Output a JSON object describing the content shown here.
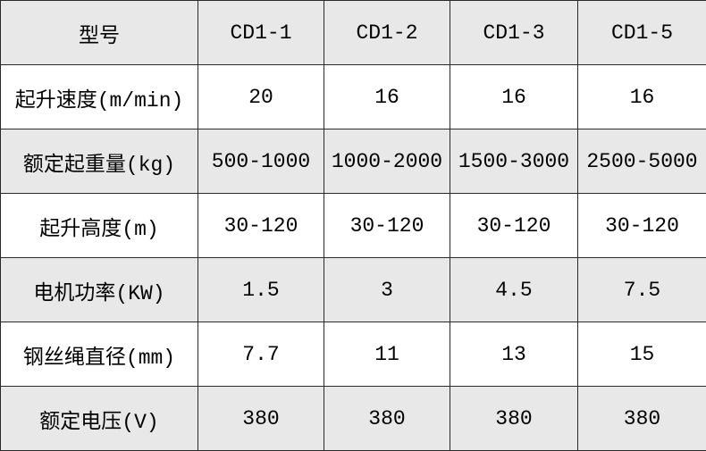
{
  "table": {
    "header": [
      "型号",
      "CD1-1",
      "CD1-2",
      "CD1-3",
      "CD1-5"
    ],
    "rows": [
      [
        "起升速度(m/min)",
        "20",
        "16",
        "16",
        "16"
      ],
      [
        "额定起重量(kg)",
        "500-1000",
        "1000-2000",
        "1500-3000",
        "2500-5000"
      ],
      [
        "起升高度(m)",
        "30-120",
        "30-120",
        "30-120",
        "30-120"
      ],
      [
        "电机功率(KW)",
        "1.5",
        "3",
        "4.5",
        "7.5"
      ],
      [
        "钢丝绳直径(mm)",
        "7.7",
        "11",
        "13",
        "15"
      ],
      [
        "额定电压(V)",
        "380",
        "380",
        "380",
        "380"
      ]
    ]
  }
}
